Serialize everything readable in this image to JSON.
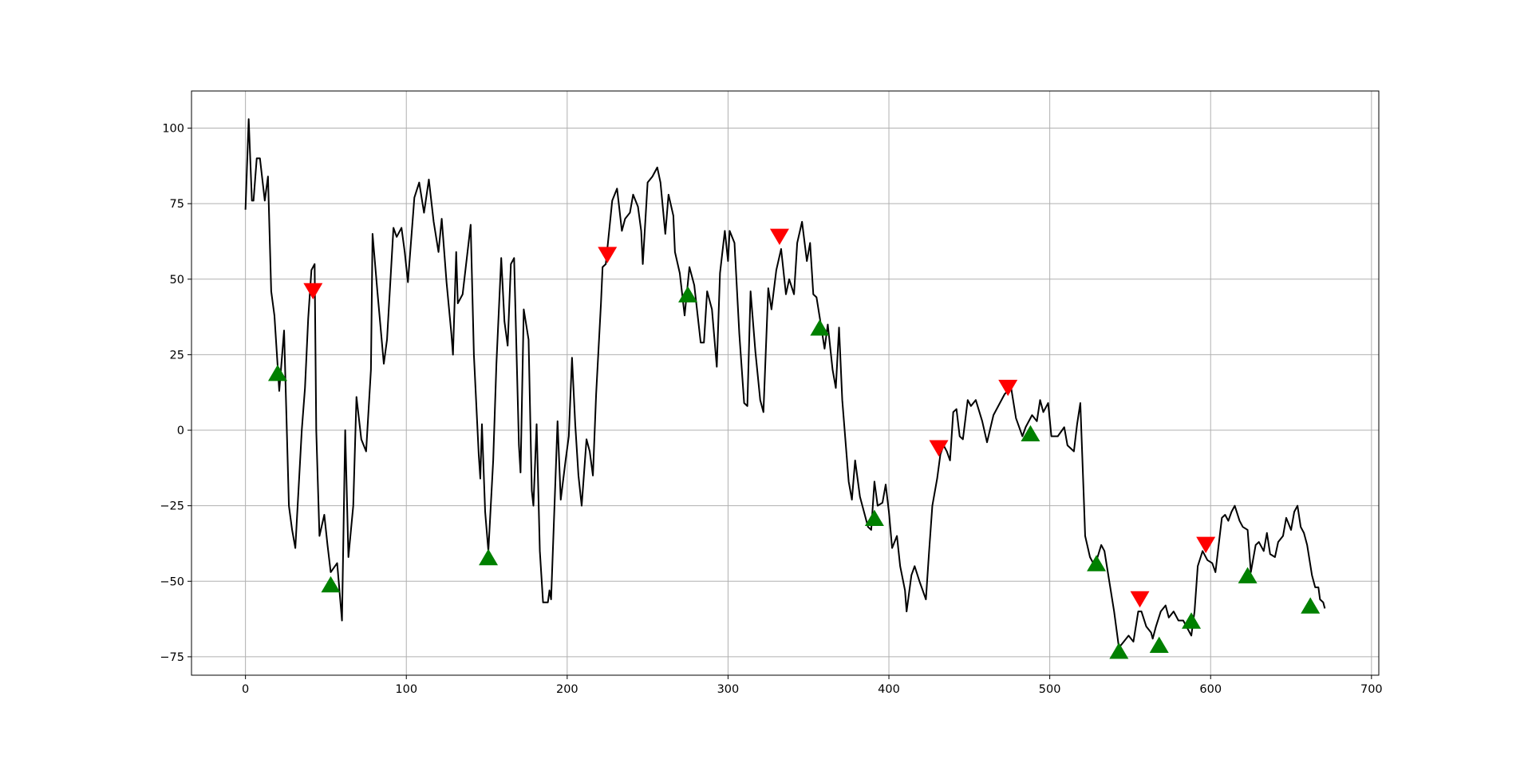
{
  "chart_data": {
    "type": "line",
    "xlim": [
      -33.55,
      704.55
    ],
    "ylim": [
      -81.1,
      112.3
    ],
    "xticks": [
      0,
      100,
      200,
      300,
      400,
      500,
      600,
      700
    ],
    "yticks": [
      {
        "value": -75,
        "label": "−75"
      },
      {
        "value": -50,
        "label": "−50"
      },
      {
        "value": -25,
        "label": "−25"
      },
      0,
      25,
      50,
      75,
      100
    ],
    "grid": true,
    "series": [
      {
        "color": "#000000",
        "marker": "none",
        "x": [
          0,
          2,
          4,
          5,
          7,
          9,
          12,
          14,
          16,
          18,
          21,
          24,
          27,
          29,
          31,
          35,
          37,
          39,
          41,
          43,
          44,
          46,
          49,
          51,
          53,
          57,
          60,
          62,
          64,
          67,
          69,
          72,
          75,
          78,
          79,
          82,
          86,
          88,
          92,
          94,
          97,
          99,
          101,
          105,
          108,
          111,
          114,
          117,
          120,
          122,
          125,
          128,
          129,
          131,
          132,
          135,
          140,
          142,
          145,
          146,
          147,
          149,
          151,
          154,
          156,
          159,
          161,
          163,
          165,
          167,
          170,
          171,
          173,
          176,
          178,
          179,
          181,
          183,
          185,
          188,
          189,
          190,
          193,
          194,
          196,
          199,
          201,
          203,
          205,
          207,
          209,
          212,
          214,
          216,
          218,
          221,
          222,
          224,
          228,
          231,
          234,
          236,
          239,
          241,
          244,
          246,
          247,
          250,
          253,
          256,
          258,
          261,
          263,
          266,
          267,
          270,
          273,
          276,
          279,
          283,
          285,
          287,
          290,
          293,
          295,
          298,
          300,
          301,
          304,
          307,
          310,
          312,
          314,
          317,
          320,
          322,
          325,
          327,
          330,
          333,
          336,
          338,
          341,
          343,
          346,
          349,
          351,
          353,
          355,
          358,
          360,
          362,
          365,
          367,
          369,
          371,
          375,
          377,
          379,
          382,
          385,
          387,
          389,
          391,
          393,
          396,
          398,
          400,
          402,
          405,
          407,
          410,
          411,
          414,
          416,
          419,
          421,
          423,
          425,
          427,
          430,
          432,
          434,
          436,
          438,
          440,
          442,
          444,
          446,
          449,
          451,
          454,
          458,
          461,
          465,
          468,
          472,
          476,
          479,
          483,
          485,
          489,
          492,
          494,
          496,
          499,
          501,
          505,
          509,
          511,
          515,
          517,
          519,
          521,
          522,
          525,
          528,
          532,
          534,
          537,
          540,
          543,
          546,
          549,
          552,
          555,
          557,
          560,
          563,
          564,
          566,
          569,
          572,
          574,
          577,
          580,
          583,
          585,
          588,
          590,
          592,
          595,
          598,
          601,
          603,
          605,
          607,
          609,
          611,
          613,
          615,
          618,
          620,
          623,
          625,
          628,
          630,
          633,
          635,
          637,
          640,
          642,
          645,
          647,
          650,
          652,
          654,
          656,
          658,
          660,
          663,
          665,
          667,
          668,
          670,
          671
        ],
        "values": [
          73,
          103,
          76,
          76,
          90,
          90,
          76,
          84,
          46,
          38,
          13,
          33,
          -25,
          -33,
          -39,
          0,
          14,
          37,
          53,
          55,
          0,
          -35,
          -28,
          -38,
          -47,
          -44,
          -63,
          0,
          -42,
          -25,
          11,
          -3,
          -7,
          20,
          65,
          46,
          22,
          30,
          67,
          64,
          67,
          59,
          49,
          77,
          82,
          72,
          83,
          69,
          59,
          70,
          49,
          32,
          25,
          59,
          42,
          45,
          68,
          25,
          -8,
          -16,
          2,
          -27,
          -40,
          -10,
          22,
          57,
          36,
          28,
          55,
          57,
          -5,
          -14,
          40,
          30,
          -20,
          -25,
          2,
          -40,
          -57,
          -57,
          -53,
          -56,
          -12,
          3,
          -23,
          -10,
          -2,
          24,
          2,
          -15,
          -25,
          -3,
          -7,
          -15,
          12,
          42,
          54,
          55,
          76,
          80,
          66,
          70,
          72,
          78,
          74,
          66,
          55,
          82,
          84,
          87,
          82,
          65,
          78,
          71,
          59,
          52,
          38,
          54,
          48,
          29,
          29,
          46,
          40,
          21,
          52,
          66,
          56,
          66,
          62,
          32,
          9,
          8,
          46,
          26,
          10,
          6,
          47,
          40,
          53,
          60,
          45,
          50,
          45,
          62,
          69,
          56,
          62,
          45,
          44,
          34,
          27,
          35,
          20,
          14,
          34,
          10,
          -17,
          -23,
          -10,
          -22,
          -28,
          -32,
          -33,
          -17,
          -25,
          -24,
          -18,
          -27,
          -39,
          -35,
          -45,
          -53,
          -60,
          -48,
          -45,
          -50,
          -53,
          -56,
          -40,
          -25,
          -16,
          -8,
          -5,
          -7,
          -10,
          6,
          7,
          -2,
          -3,
          10,
          8,
          10,
          3,
          -4,
          5,
          8,
          12,
          14,
          4,
          -2,
          1,
          5,
          3,
          10,
          6,
          9,
          -2,
          -2,
          1,
          -5,
          -7,
          2,
          9,
          -20,
          -35,
          -42,
          -45,
          -38,
          -40,
          -50,
          -60,
          -72,
          -70,
          -68,
          -70,
          -60,
          -60,
          -65,
          -67,
          -69,
          -65,
          -60,
          -58,
          -62,
          -60,
          -63,
          -63,
          -65,
          -68,
          -60,
          -45,
          -40,
          -43,
          -44,
          -47,
          -38,
          -29,
          -28,
          -30,
          -27,
          -25,
          -30,
          -32,
          -33,
          -47,
          -38,
          -37,
          -40,
          -34,
          -41,
          -42,
          -37,
          -35,
          -29,
          -33,
          -27,
          -25,
          -32,
          -34,
          -38,
          -48,
          -52,
          -52,
          -56,
          -57,
          -59
        ]
      },
      {
        "color": "#ff0000",
        "marker": "v",
        "x": [
          42,
          225,
          332,
          431,
          474,
          556,
          597
        ],
        "values": [
          46,
          58,
          64,
          -6,
          14,
          -56,
          -38
        ]
      },
      {
        "color": "#008000",
        "marker": "^",
        "x": [
          20,
          53,
          151,
          275,
          357,
          391,
          488,
          529,
          543,
          568,
          588,
          623,
          662
        ],
        "values": [
          19,
          -51,
          -42,
          45,
          34,
          -29,
          -1,
          -44,
          -73,
          -71,
          -63,
          -48,
          -58
        ]
      }
    ]
  }
}
